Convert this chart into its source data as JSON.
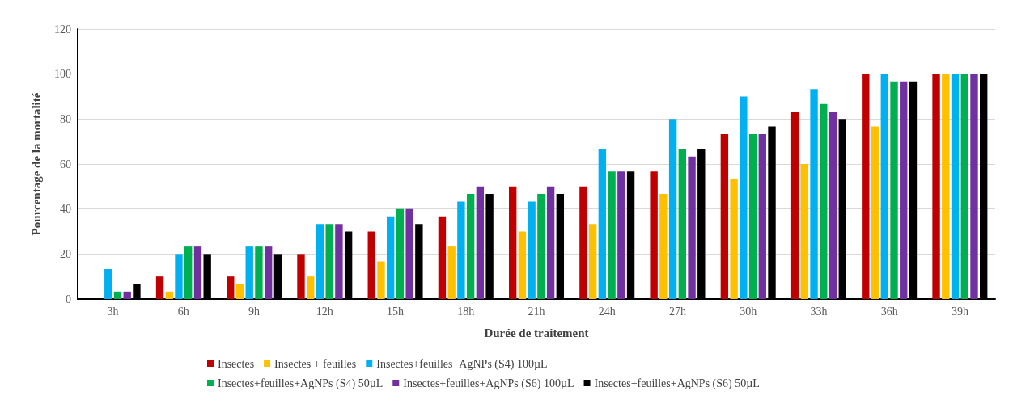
{
  "chart_data": {
    "type": "bar",
    "xlabel": "Durée de traitement",
    "ylabel": "Pourcentage de la mortalité",
    "categories": [
      "3h",
      "6h",
      "9h",
      "12h",
      "15h",
      "18h",
      "21h",
      "24h",
      "27h",
      "30h",
      "33h",
      "36h",
      "39h"
    ],
    "series": [
      {
        "name": "Insectes",
        "color": "#c00000",
        "values": [
          0,
          10,
          10,
          20,
          30,
          36.7,
          50,
          50,
          56.7,
          73.3,
          83.3,
          100,
          100
        ]
      },
      {
        "name": "Insectes + feuilles",
        "color": "#ffc000",
        "values": [
          0,
          3.3,
          6.7,
          10,
          16.7,
          23.3,
          30,
          33.3,
          46.7,
          53.3,
          60,
          76.7,
          100
        ]
      },
      {
        "name": "Insectes+feuilles+AgNPs (S4) 100µL",
        "color": "#00b0f0",
        "values": [
          13.3,
          20,
          23.3,
          33.3,
          36.7,
          43.3,
          43.3,
          66.7,
          80,
          90,
          93.3,
          100,
          100
        ]
      },
      {
        "name": "Insectes+feuilles+AgNPs (S4) 50µL",
        "color": "#00b050",
        "values": [
          3.3,
          23.3,
          23.3,
          33.3,
          40,
          46.7,
          46.7,
          56.7,
          66.7,
          73.3,
          86.7,
          96.7,
          100
        ]
      },
      {
        "name": "Insectes+feuilles+AgNPs (S6) 100µL",
        "color": "#7030a0",
        "values": [
          3.3,
          23.3,
          23.3,
          33.3,
          40,
          50,
          50,
          56.7,
          63.3,
          73.3,
          83.3,
          96.7,
          100
        ]
      },
      {
        "name": "Insectes+feuilles+AgNPs (S6) 50µL",
        "color": "#000000",
        "values": [
          6.7,
          20,
          20,
          30,
          33.3,
          46.7,
          46.7,
          56.7,
          66.7,
          76.7,
          80,
          96.7,
          100
        ]
      }
    ],
    "ylim": [
      0,
      120
    ],
    "yticks": [
      0,
      20,
      40,
      60,
      80,
      100,
      120
    ],
    "grid": "y",
    "legend": "bottom"
  }
}
